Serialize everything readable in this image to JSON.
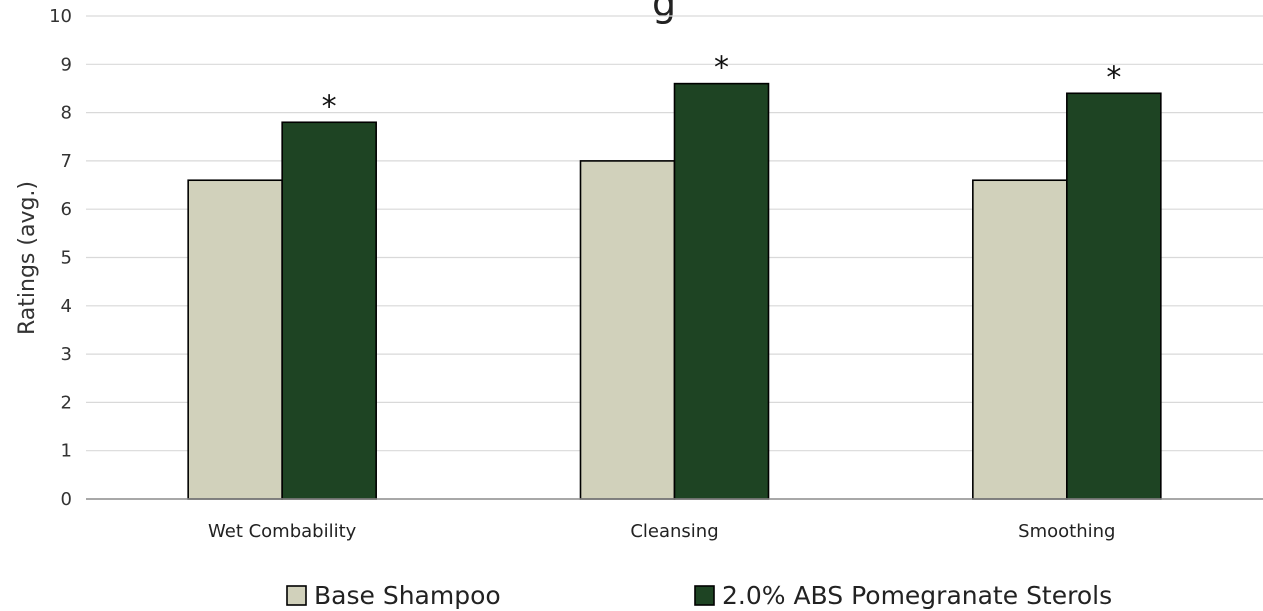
{
  "chart_data": {
    "type": "bar",
    "title_fragment": "g",
    "ylabel": "Ratings (avg.)",
    "xlabel": "",
    "ylim": [
      0,
      10
    ],
    "yticks": [
      "0",
      "1",
      "2",
      "3",
      "4",
      "5",
      "6",
      "7",
      "8",
      "9",
      "10"
    ],
    "grid": true,
    "categories": [
      "Wet Combability",
      "Cleansing",
      "Smoothing"
    ],
    "series": [
      {
        "name": "Base Shampoo",
        "color": "#d1d1bb",
        "values": [
          6.6,
          7.0,
          6.6
        ]
      },
      {
        "name": "2.0% ABS Pomegranate Sterols",
        "color": "#1e4423",
        "values": [
          7.8,
          8.6,
          8.4
        ]
      }
    ],
    "annotations": [
      {
        "category": "Wet Combability",
        "series": "2.0% ABS Pomegranate Sterols",
        "text": "*"
      },
      {
        "category": "Cleansing",
        "series": "2.0% ABS Pomegranate Sterols",
        "text": "*"
      },
      {
        "category": "Smoothing",
        "series": "2.0% ABS Pomegranate Sterols",
        "text": "*"
      }
    ],
    "legend": {
      "placement": "bottom",
      "entries": [
        "Base Shampoo",
        "2.0% ABS Pomegranate Sterols"
      ]
    }
  }
}
